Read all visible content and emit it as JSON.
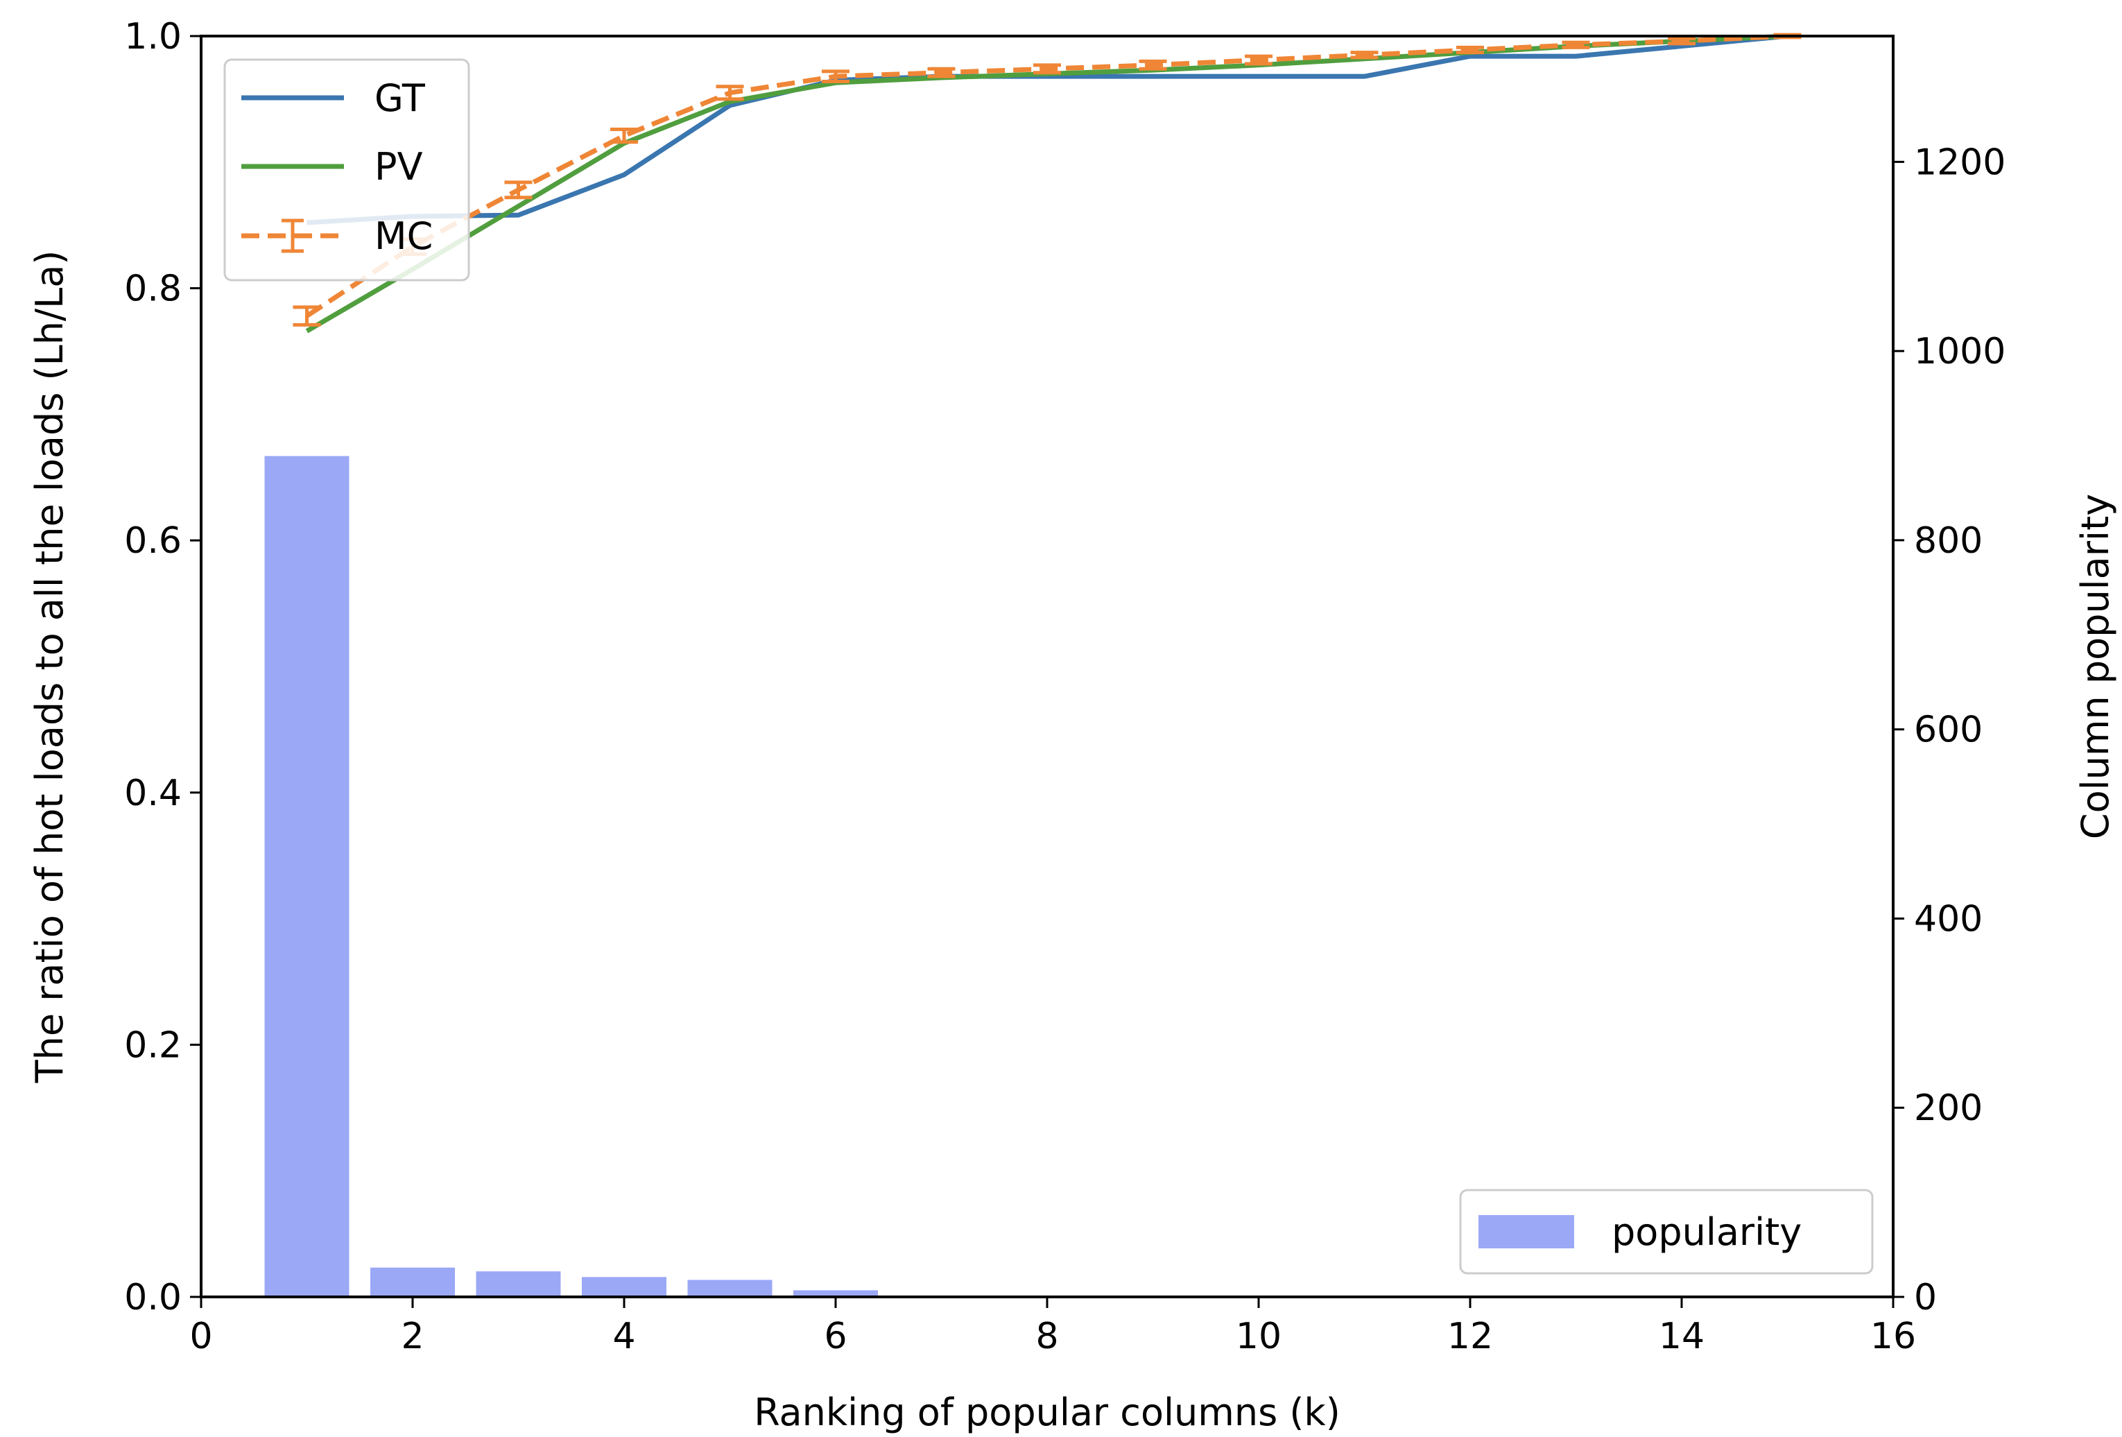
{
  "chart_data": {
    "type": "bar+line",
    "xlabel": "Ranking of popular columns (k)",
    "ylabel_left": "The ratio of hot loads to all the loads (Lh/La)",
    "ylabel_right": "Column popularity",
    "xlim": [
      0,
      16
    ],
    "ylim_left": [
      0,
      1.0
    ],
    "ylim_right": [
      0,
      1333
    ],
    "x_ticks": [
      0,
      2,
      4,
      6,
      8,
      10,
      12,
      14,
      16
    ],
    "y_left_ticks": [
      0.0,
      0.2,
      0.4,
      0.6,
      0.8,
      1.0
    ],
    "y_right_ticks": [
      0,
      200,
      400,
      600,
      800,
      1000,
      1200
    ],
    "x_tick_labels": [
      "0",
      "2",
      "4",
      "6",
      "8",
      "10",
      "12",
      "14",
      "16"
    ],
    "y_left_tick_labels": [
      "0.0",
      "0.2",
      "0.4",
      "0.6",
      "0.8",
      "1.0"
    ],
    "y_right_tick_labels": [
      "0",
      "200",
      "400",
      "600",
      "800",
      "1000",
      "1200"
    ],
    "bars": {
      "name": "popularity",
      "color": "#9ba8f6",
      "x": [
        1,
        2,
        3,
        4,
        5,
        6
      ],
      "values": [
        889,
        31,
        27,
        21,
        18,
        7
      ]
    },
    "series": [
      {
        "name": "GT",
        "color": "#3a76af",
        "style": "solid",
        "x": [
          1,
          2,
          3,
          4,
          5,
          6,
          7,
          8,
          9,
          10,
          11,
          12,
          13,
          14,
          15
        ],
        "y": [
          0.852,
          0.857,
          0.858,
          0.89,
          0.945,
          0.965,
          0.968,
          0.968,
          0.968,
          0.968,
          0.968,
          0.984,
          0.984,
          0.992,
          1.0
        ]
      },
      {
        "name": "PV",
        "color": "#509e3e",
        "style": "solid",
        "x": [
          1,
          2,
          3,
          4,
          5,
          6,
          7,
          8,
          9,
          10,
          11,
          12,
          13,
          14,
          15
        ],
        "y": [
          0.766,
          0.815,
          0.865,
          0.915,
          0.948,
          0.963,
          0.967,
          0.97,
          0.973,
          0.977,
          0.982,
          0.987,
          0.992,
          0.996,
          1.0
        ]
      },
      {
        "name": "MC",
        "color": "#ef8636",
        "style": "dashed",
        "errorbars": true,
        "x": [
          1,
          2,
          3,
          4,
          5,
          6,
          7,
          8,
          9,
          10,
          11,
          12,
          13,
          14,
          15
        ],
        "y": [
          0.778,
          0.833,
          0.878,
          0.921,
          0.955,
          0.968,
          0.971,
          0.974,
          0.977,
          0.981,
          0.985,
          0.989,
          0.993,
          0.996,
          1.0
        ],
        "yerr": [
          0.007,
          0.006,
          0.006,
          0.005,
          0.005,
          0.004,
          0.003,
          0.003,
          0.003,
          0.003,
          0.002,
          0.002,
          0.002,
          0.002,
          0.001
        ]
      }
    ],
    "legend_lines_position": "upper-left",
    "legend_bars_position": "lower-right",
    "grid": false
  }
}
